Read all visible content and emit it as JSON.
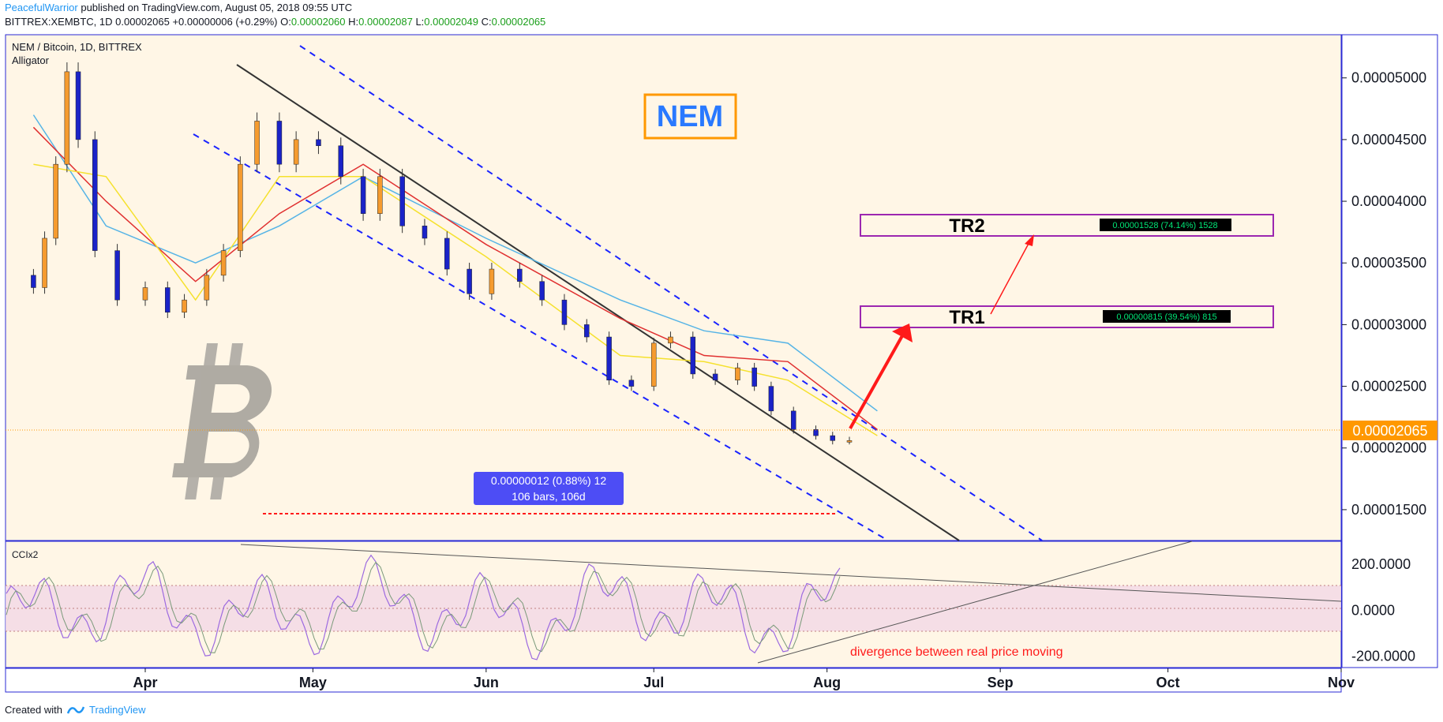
{
  "header": {
    "author": "PeacefulWarrior",
    "published_text": "published on TradingView.com, August 05, 2018 09:55 UTC",
    "symbol": "BITTREX:XEMBTC, 1D",
    "open_value": "0.00002065",
    "change": "+0.00000006 (+0.29%)",
    "o_label": "O:",
    "o_value": "0.00002060",
    "h_label": "H:",
    "h_value": "0.00002087",
    "l_label": "L:",
    "l_value": "0.00002049",
    "c_label": "C:",
    "c_value": "0.00002065"
  },
  "legend": {
    "title": "NEM / Bitcoin, 1D, BITTREX",
    "indicator": "Alligator",
    "cci_label": "CCIx2"
  },
  "annotations": {
    "nem_label": "NEM",
    "tr1_label": "TR1",
    "tr1_badge": "0.00000815 (39.54%) 815",
    "tr2_label": "TR2",
    "tr2_badge": "0.00001528 (74.14%) 1528",
    "measure_line1": "0.00000012 (0.88%) 12",
    "measure_line2": "106 bars, 106d",
    "divergence_text": "divergence between real price moving"
  },
  "price_axis": {
    "ticks": [
      "0.00005000",
      "0.00004500",
      "0.00004000",
      "0.00003500",
      "0.00003000",
      "0.00002500",
      "0.00002000",
      "0.00001500"
    ],
    "current_price_label": "0.00002065"
  },
  "cci_axis": {
    "ticks": [
      "200.0000",
      "0.0000",
      "-200.0000"
    ]
  },
  "time_axis": {
    "labels": [
      "Apr",
      "May",
      "Jun",
      "Jul",
      "Aug",
      "Sep",
      "Oct",
      "Nov"
    ]
  },
  "footer": {
    "created_with": "Created with",
    "brand": "TradingView"
  },
  "colors": {
    "chart_bg": "#fff6e6",
    "up_candle": "#f59b2f",
    "down_candle": "#1a23c8",
    "jaw": "#56b4e6",
    "teeth": "#e03030",
    "lips": "#f5e12e",
    "channel": "#1a23ff",
    "target_box": "#9c27b0",
    "badge_bg": "#000000",
    "badge_text": "#00e676",
    "price_tag": "#ff9800",
    "nem_border": "#ff9800",
    "nem_text": "#2979ff"
  },
  "chart_data": {
    "type": "candlestick",
    "title": "NEM / Bitcoin, 1D, BITTREX",
    "ylim": [
      1.25e-05,
      5.35e-05
    ],
    "x_start": "2018-03-07",
    "x_end": "2018-11-01",
    "close_series": {
      "name": "XEMBTC close",
      "points": [
        [
          "2018-03-08",
          3.4e-05
        ],
        [
          "2018-03-12",
          3.3e-05
        ],
        [
          "2018-03-14",
          3.7e-05
        ],
        [
          "2018-03-16",
          4.3e-05
        ],
        [
          "2018-03-18",
          5.05e-05
        ],
        [
          "2018-03-20",
          4.5e-05
        ],
        [
          "2018-03-23",
          3.6e-05
        ],
        [
          "2018-03-27",
          3.2e-05
        ],
        [
          "2018-04-01",
          3.3e-05
        ],
        [
          "2018-04-05",
          3.1e-05
        ],
        [
          "2018-04-08",
          3.2e-05
        ],
        [
          "2018-04-12",
          3.4e-05
        ],
        [
          "2018-04-15",
          3.6e-05
        ],
        [
          "2018-04-18",
          4.3e-05
        ],
        [
          "2018-04-21",
          4.65e-05
        ],
        [
          "2018-04-25",
          4.3e-05
        ],
        [
          "2018-04-28",
          4.5e-05
        ],
        [
          "2018-05-02",
          4.45e-05
        ],
        [
          "2018-05-06",
          4.2e-05
        ],
        [
          "2018-05-10",
          3.9e-05
        ],
        [
          "2018-05-13",
          4.2e-05
        ],
        [
          "2018-05-17",
          3.8e-05
        ],
        [
          "2018-05-21",
          3.7e-05
        ],
        [
          "2018-05-25",
          3.45e-05
        ],
        [
          "2018-05-29",
          3.25e-05
        ],
        [
          "2018-06-02",
          3.45e-05
        ],
        [
          "2018-06-07",
          3.35e-05
        ],
        [
          "2018-06-11",
          3.2e-05
        ],
        [
          "2018-06-15",
          3e-05
        ],
        [
          "2018-06-19",
          2.9e-05
        ],
        [
          "2018-06-23",
          2.55e-05
        ],
        [
          "2018-06-27",
          2.5e-05
        ],
        [
          "2018-07-01",
          2.85e-05
        ],
        [
          "2018-07-04",
          2.9e-05
        ],
        [
          "2018-07-08",
          2.6e-05
        ],
        [
          "2018-07-12",
          2.55e-05
        ],
        [
          "2018-07-16",
          2.65e-05
        ],
        [
          "2018-07-19",
          2.5e-05
        ],
        [
          "2018-07-22",
          2.3e-05
        ],
        [
          "2018-07-26",
          2.15e-05
        ],
        [
          "2018-07-30",
          2.1e-05
        ],
        [
          "2018-08-02",
          2.06e-05
        ],
        [
          "2018-08-05",
          2.06e-05
        ]
      ]
    },
    "alligator": [
      {
        "name": "Jaw",
        "color": "#56b4e6",
        "points": [
          [
            "2018-03-12",
            4.7e-05
          ],
          [
            "2018-03-25",
            3.8e-05
          ],
          [
            "2018-04-10",
            3.5e-05
          ],
          [
            "2018-04-25",
            3.8e-05
          ],
          [
            "2018-05-10",
            4.2e-05
          ],
          [
            "2018-06-01",
            3.7e-05
          ],
          [
            "2018-06-25",
            3.2e-05
          ],
          [
            "2018-07-10",
            2.95e-05
          ],
          [
            "2018-07-25",
            2.85e-05
          ],
          [
            "2018-08-10",
            2.3e-05
          ]
        ]
      },
      {
        "name": "Teeth",
        "color": "#e03030",
        "points": [
          [
            "2018-03-12",
            4.6e-05
          ],
          [
            "2018-03-25",
            4e-05
          ],
          [
            "2018-04-10",
            3.35e-05
          ],
          [
            "2018-04-25",
            3.9e-05
          ],
          [
            "2018-05-10",
            4.3e-05
          ],
          [
            "2018-06-01",
            3.65e-05
          ],
          [
            "2018-06-25",
            3.05e-05
          ],
          [
            "2018-07-10",
            2.75e-05
          ],
          [
            "2018-07-25",
            2.7e-05
          ],
          [
            "2018-08-10",
            2.15e-05
          ]
        ]
      },
      {
        "name": "Lips",
        "color": "#f5e12e",
        "points": [
          [
            "2018-03-12",
            4.3e-05
          ],
          [
            "2018-03-25",
            4.2e-05
          ],
          [
            "2018-04-10",
            3.2e-05
          ],
          [
            "2018-04-25",
            4.2e-05
          ],
          [
            "2018-05-10",
            4.2e-05
          ],
          [
            "2018-06-01",
            3.55e-05
          ],
          [
            "2018-06-25",
            2.75e-05
          ],
          [
            "2018-07-10",
            2.7e-05
          ],
          [
            "2018-07-25",
            2.55e-05
          ],
          [
            "2018-08-10",
            2.1e-05
          ]
        ]
      }
    ],
    "targets": [
      {
        "label": "TR1",
        "price_low": 2.86e-05,
        "price_high": 3.04e-05,
        "change": "0.00000815 (39.54%) 815"
      },
      {
        "label": "TR2",
        "price_low": 3.57e-05,
        "price_high": 3.75e-05,
        "change": "0.00001528 (74.14%) 1528"
      }
    ],
    "current_price": 2.065e-05,
    "yticks": [
      5e-05,
      4.5e-05,
      4e-05,
      3.5e-05,
      3e-05,
      2.5e-05,
      2e-05,
      1.5e-05
    ],
    "cci": {
      "name": "CCIx2",
      "ylim": [
        -250,
        300
      ],
      "yticks": [
        200,
        0,
        -200
      ]
    }
  }
}
